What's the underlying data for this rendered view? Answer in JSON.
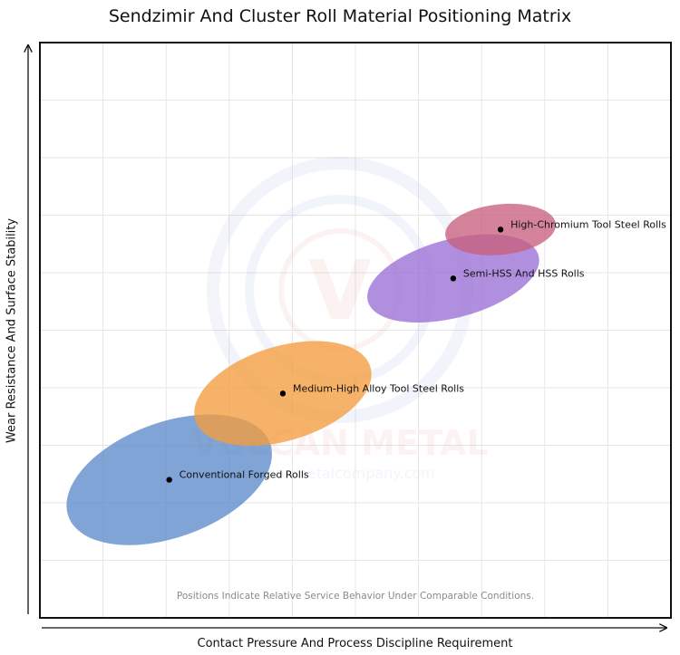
{
  "chart_data": {
    "type": "bubble-matrix",
    "title": "Sendzimir And Cluster Roll Material Positioning Matrix",
    "xlabel": "Contact Pressure And Process Discipline Requirement",
    "ylabel": "Wear Resistance And Surface Stability",
    "xlim": [
      0,
      10
    ],
    "ylim": [
      0,
      10
    ],
    "grid": true,
    "note": "Positions Indicate Relative Service Behavior Under Comparable Conditions.",
    "watermark": {
      "brand": "VULCAN METAL",
      "url": "vulcanmetalcompany.com"
    },
    "series": [
      {
        "name": "Conventional Forged Rolls",
        "x": 2.05,
        "y": 2.4,
        "rx": 1.7,
        "ry": 1.0,
        "angle": -20,
        "color": "#5b8bc9"
      },
      {
        "name": "Medium-High Alloy Tool Steel Rolls",
        "x": 3.85,
        "y": 3.9,
        "rx": 1.45,
        "ry": 0.82,
        "angle": -17,
        "color": "#f39c3d"
      },
      {
        "name": "Semi-HSS And HSS Rolls",
        "x": 6.55,
        "y": 5.9,
        "rx": 1.4,
        "ry": 0.68,
        "angle": -15,
        "color": "#9b6fd6"
      },
      {
        "name": "High-Chromium Tool Steel Rolls",
        "x": 7.3,
        "y": 6.75,
        "rx": 0.88,
        "ry": 0.44,
        "angle": -6,
        "color": "#c8607e"
      }
    ]
  }
}
